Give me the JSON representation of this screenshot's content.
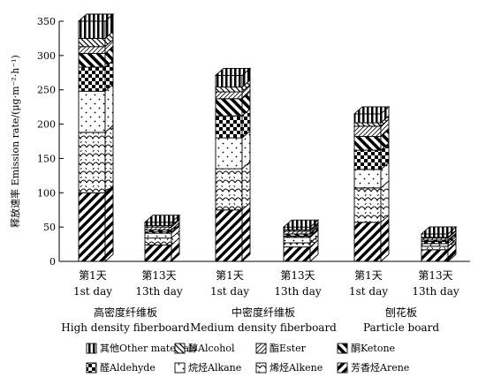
{
  "chart_data": {
    "type": "bar",
    "stacked": true,
    "style": "3d",
    "ylabel": "释放速率 Emission rate/(μg·m⁻²·h⁻¹)",
    "ylim": [
      0,
      350
    ],
    "yticks": [
      0,
      50,
      100,
      150,
      200,
      250,
      300,
      350
    ],
    "grid": false,
    "legend_position": "bottom",
    "categories": [
      {
        "day_cn": "第1天",
        "day_en": "1st day"
      },
      {
        "day_cn": "第13天",
        "day_en": "13th day"
      },
      {
        "day_cn": "第1天",
        "day_en": "1st day"
      },
      {
        "day_cn": "第13天",
        "day_en": "13th day"
      },
      {
        "day_cn": "第1天",
        "day_en": "1st day"
      },
      {
        "day_cn": "第13天",
        "day_en": "13th day"
      }
    ],
    "groups": [
      {
        "name_cn": "高密度纤维板",
        "name_en": "High density fiberboard"
      },
      {
        "name_cn": "中密度纤维板",
        "name_en": "Medium density fiberboard"
      },
      {
        "name_cn": "刨花板",
        "name_en": "Particle board"
      }
    ],
    "series": [
      {
        "name": "芳香烃Arene",
        "pattern": "diag-bold",
        "values": [
          100,
          24,
          75,
          21,
          57,
          17
        ]
      },
      {
        "name": "烯烃Alkene",
        "pattern": "scallop",
        "values": [
          88,
          10,
          60,
          6,
          50,
          5
        ]
      },
      {
        "name": "烷烃Alkane",
        "pattern": "dots",
        "values": [
          60,
          7,
          45,
          8,
          27,
          4
        ]
      },
      {
        "name": "醛Aldehyde",
        "pattern": "checker",
        "values": [
          35,
          2,
          32,
          2,
          28,
          3
        ]
      },
      {
        "name": "酮Ketone",
        "pattern": "diag-rev",
        "values": [
          20,
          3,
          25,
          3,
          20,
          2
        ]
      },
      {
        "name": "酯Ester",
        "pattern": "diag-thin",
        "values": [
          10,
          4,
          10,
          4,
          15,
          3
        ]
      },
      {
        "name": "醇Alcohol",
        "pattern": "diag-mid",
        "values": [
          12,
          2,
          7,
          2,
          5,
          1
        ]
      },
      {
        "name": "其他Other materials",
        "pattern": "vstripe",
        "values": [
          25,
          5,
          17,
          4,
          13,
          5
        ]
      }
    ]
  },
  "legend_rows": [
    [
      "其他Other materials",
      "醇Alcohol",
      "酯Ester",
      "酮Ketone"
    ],
    [
      "醛Aldehyde",
      "烷烃Alkane",
      "烯烃Alkene",
      "芳香烃Arene"
    ]
  ]
}
